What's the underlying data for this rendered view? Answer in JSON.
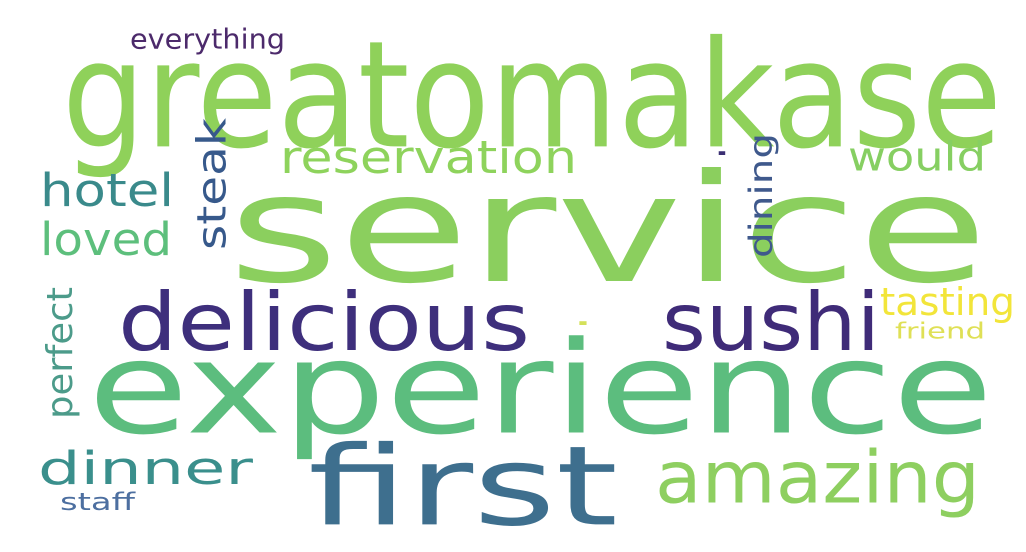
{
  "words": [
    {
      "text": "service",
      "color": "#8bcf5e",
      "orientation": "horizontal"
    },
    {
      "text": "greatomakase",
      "color": "#8fd15a",
      "orientation": "horizontal"
    },
    {
      "text": "experience",
      "color": "#5cbd7e",
      "orientation": "horizontal"
    },
    {
      "text": "first",
      "color": "#3e6f8e",
      "orientation": "horizontal"
    },
    {
      "text": "delicious",
      "color": "#3e2f7c",
      "orientation": "horizontal"
    },
    {
      "text": "sushi",
      "color": "#3f2b78",
      "orientation": "horizontal"
    },
    {
      "text": "amazing",
      "color": "#8ecf60",
      "orientation": "horizontal"
    },
    {
      "text": "dinner",
      "color": "#3a8f8c",
      "orientation": "horizontal"
    },
    {
      "text": "reservation",
      "color": "#8ed35c",
      "orientation": "horizontal"
    },
    {
      "text": "would",
      "color": "#86cf62",
      "orientation": "horizontal"
    },
    {
      "text": "hotel",
      "color": "#3a8a8b",
      "orientation": "horizontal"
    },
    {
      "text": "loved",
      "color": "#5dbf7c",
      "orientation": "horizontal"
    },
    {
      "text": "steak",
      "color": "#37598b",
      "orientation": "vertical"
    },
    {
      "text": "dining",
      "color": "#3f598c",
      "orientation": "vertical"
    },
    {
      "text": "perfect",
      "color": "#4c9b8a",
      "orientation": "vertical"
    },
    {
      "text": "tasting",
      "color": "#f2e53a",
      "orientation": "horizontal"
    },
    {
      "text": "friend",
      "color": "#dfe056",
      "orientation": "horizontal"
    },
    {
      "text": "everything",
      "color": "#4c2a6b",
      "orientation": "horizontal"
    },
    {
      "text": "staff",
      "color": "#4d6fa0",
      "orientation": "horizontal"
    },
    {
      "text": ".",
      "color": "#d4e15a",
      "orientation": "horizontal"
    },
    {
      "text": ".",
      "color": "#3b2f73",
      "orientation": "horizontal"
    }
  ]
}
